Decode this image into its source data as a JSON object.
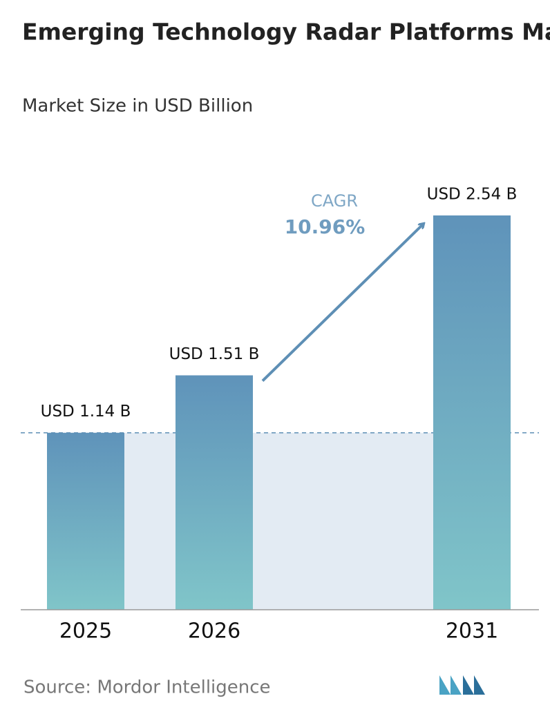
{
  "chart_data": {
    "type": "bar",
    "title": "Emerging Technology Radar Platforms Market",
    "subtitle": "Market Size in USD Billion",
    "categories": [
      "2025",
      "2026",
      "2031"
    ],
    "values": [
      1.14,
      1.51,
      2.54
    ],
    "value_labels": [
      "USD 1.14 B",
      "USD 1.51 B",
      "USD 2.54 B"
    ],
    "annotations": {
      "cagr_label": "CAGR",
      "cagr_value": "10.96%"
    },
    "source": "Source: Mordor Intelligence"
  }
}
